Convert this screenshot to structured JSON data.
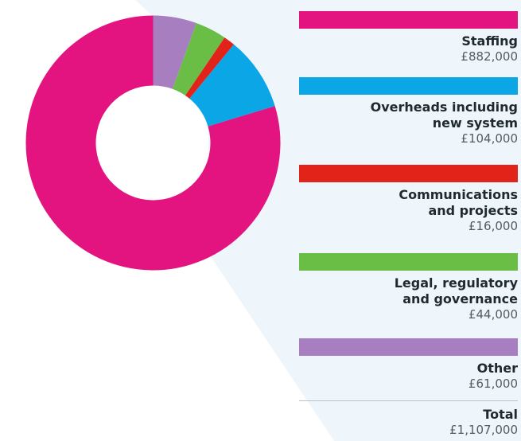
{
  "chart_data": {
    "type": "pie",
    "donut": true,
    "title": "",
    "categories": [
      "Staffing",
      "Overheads including new system",
      "Communications and projects",
      "Legal, regulatory and governance",
      "Other"
    ],
    "labels_display": [
      [
        "Staffing"
      ],
      [
        "Overheads including",
        "new system"
      ],
      [
        "Communications",
        "and projects"
      ],
      [
        "Legal, regulatory",
        "and governance"
      ],
      [
        "Other"
      ]
    ],
    "values": [
      882000,
      104000,
      16000,
      44000,
      61000
    ],
    "value_labels": [
      "£882,000",
      "£104,000",
      "£16,000",
      "£44,000",
      "£61,000"
    ],
    "colors": [
      "#e3147f",
      "#0aa6e6",
      "#e2231a",
      "#6bbe45",
      "#a77ebf"
    ],
    "legend_position": "right",
    "total_label": "Total",
    "total_value": "£1,107,000"
  },
  "background": {
    "wedge_color": "#eef6fb"
  }
}
